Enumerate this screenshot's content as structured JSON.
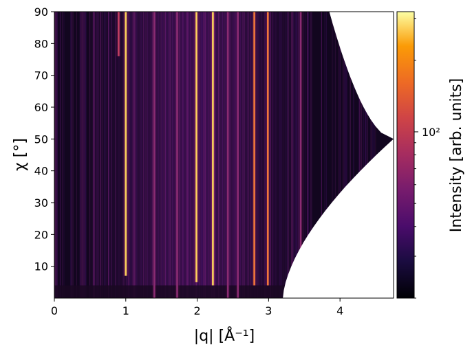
{
  "chart_data": {
    "type": "heatmap",
    "title": "",
    "xlabel": "|q| [Å⁻¹]",
    "ylabel": "χ [°]",
    "xlim": [
      0,
      4.75
    ],
    "ylim": [
      0,
      90
    ],
    "x_ticks": [
      0,
      1,
      2,
      3,
      4
    ],
    "y_ticks": [
      10,
      20,
      30,
      40,
      50,
      60,
      70,
      80,
      90
    ],
    "colormap": "inferno",
    "color_scale": "log",
    "colorbar": {
      "label": "Intensity [arb. units]",
      "major_tick_value": 100,
      "major_tick_label": "10²",
      "range": [
        20,
        320
      ]
    },
    "bright_rings_q": [
      {
        "q": 0.9,
        "strength": 0.45,
        "chi_min": 76
      },
      {
        "q": 1.0,
        "strength": 0.95,
        "chi_min": 7
      },
      {
        "q": 1.4,
        "strength": 0.3,
        "chi_min": 0
      },
      {
        "q": 1.72,
        "strength": 0.35,
        "chi_min": 0
      },
      {
        "q": 1.99,
        "strength": 1.0,
        "chi_min": 5
      },
      {
        "q": 2.22,
        "strength": 0.85,
        "chi_min": 4
      },
      {
        "q": 2.43,
        "strength": 0.25,
        "chi_min": 0
      },
      {
        "q": 2.57,
        "strength": 0.25,
        "chi_min": 0
      },
      {
        "q": 2.8,
        "strength": 0.75,
        "chi_min": 4
      },
      {
        "q": 2.99,
        "strength": 0.6,
        "chi_min": 4
      },
      {
        "q": 3.45,
        "strength": 0.2,
        "chi_min": 0
      }
    ],
    "masked_region": "white detector-coverage cutout on the right side (q > ~3.2 Å⁻¹ at χ=0, narrowing to a point at q ≈ 4.75, χ ≈ 50°)",
    "colors": {
      "background": "#ffffff",
      "axis": "#000000",
      "mask": "#ffffff"
    }
  }
}
